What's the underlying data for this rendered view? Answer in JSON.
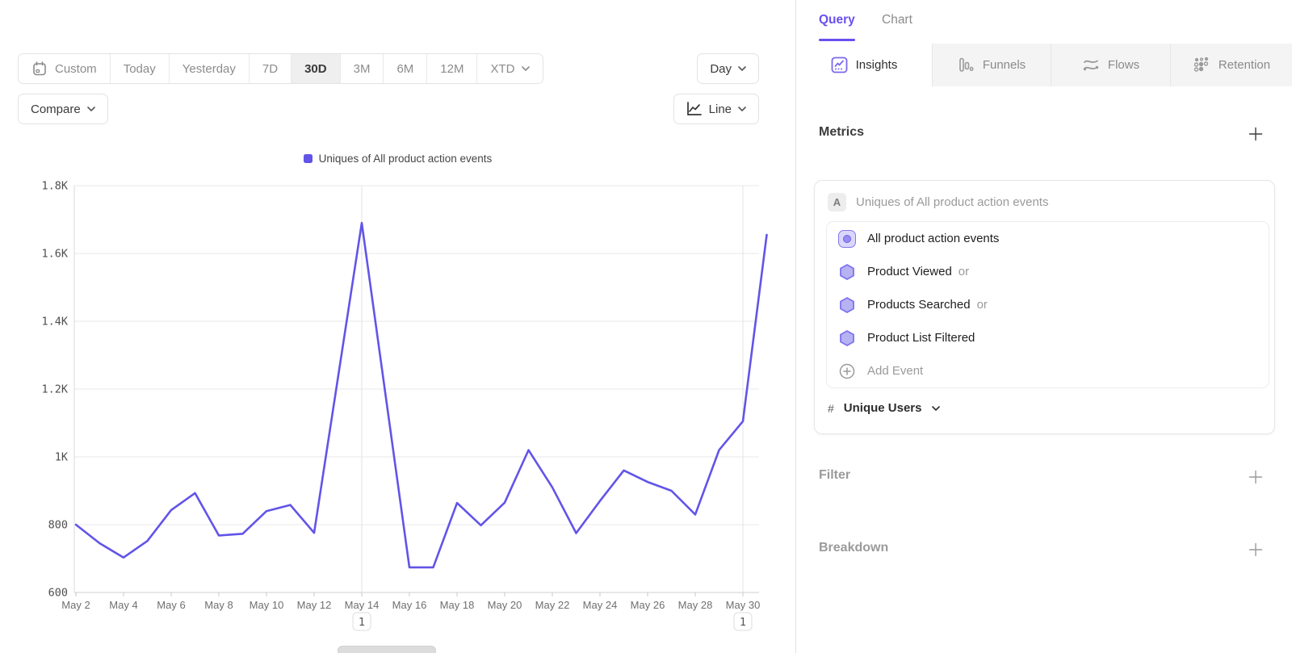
{
  "colors": {
    "accent_purple": "#6254e8",
    "query_purple": "#6a4ff0",
    "hex_fill": "#b7b2f4",
    "hex_stroke": "#7d72ee",
    "grid": "#e9e9e9",
    "axis": "#d2d2d2",
    "muted_text": "#8c8c8c"
  },
  "toolbar": {
    "date_ranges": [
      "Custom",
      "Today",
      "Yesterday",
      "7D",
      "30D",
      "3M",
      "6M",
      "12M",
      "XTD"
    ],
    "selected_range": "30D",
    "interval_label": "Day",
    "compare_label": "Compare",
    "chart_type_label": "Line"
  },
  "chart_data": {
    "type": "line",
    "legend_position": "top-center",
    "grid": true,
    "ylabel": "",
    "xlabel": "",
    "ylim": [
      600,
      1800
    ],
    "yticks": [
      {
        "value": 1800,
        "label": "1.8K"
      },
      {
        "value": 1600,
        "label": "1.6K"
      },
      {
        "value": 1400,
        "label": "1.4K"
      },
      {
        "value": 1200,
        "label": "1.2K"
      },
      {
        "value": 1000,
        "label": "1K"
      },
      {
        "value": 800,
        "label": "800"
      },
      {
        "value": 600,
        "label": "600"
      }
    ],
    "x": [
      "May 2",
      "May 3",
      "May 4",
      "May 5",
      "May 6",
      "May 7",
      "May 8",
      "May 9",
      "May 10",
      "May 11",
      "May 12",
      "May 13",
      "May 14",
      "May 15",
      "May 16",
      "May 17",
      "May 18",
      "May 19",
      "May 20",
      "May 21",
      "May 22",
      "May 23",
      "May 24",
      "May 25",
      "May 26",
      "May 27",
      "May 28",
      "May 29",
      "May 30",
      "May 31"
    ],
    "xtick_labels": [
      "May 2",
      "May 4",
      "May 6",
      "May 8",
      "May 10",
      "May 12",
      "May 14",
      "May 16",
      "May 18",
      "May 20",
      "May 22",
      "May 24",
      "May 26",
      "May 28",
      "May 30"
    ],
    "series": [
      {
        "name": "Uniques of All product action events",
        "color": "#6254e8",
        "values": [
          800,
          745,
          703,
          752,
          843,
          893,
          768,
          773,
          840,
          858,
          776,
          1233,
          1690,
          1182,
          674,
          674,
          864,
          798,
          865,
          1020,
          910,
          775,
          870,
          960,
          926,
          900,
          830,
          1020,
          1105,
          1655
        ]
      }
    ],
    "annotations": [
      {
        "label": "1",
        "date": "May 14"
      },
      {
        "label": "1",
        "date": "May 30"
      }
    ]
  },
  "panel": {
    "header_tabs": [
      {
        "label": "Query",
        "active": true
      },
      {
        "label": "Chart",
        "active": false
      }
    ],
    "report_tabs": [
      {
        "label": "Insights",
        "icon": "insights-icon",
        "active": true
      },
      {
        "label": "Funnels",
        "icon": "funnels-icon",
        "active": false
      },
      {
        "label": "Flows",
        "icon": "flows-icon",
        "active": false
      },
      {
        "label": "Retention",
        "icon": "retention-icon",
        "active": false
      }
    ],
    "metrics": {
      "title": "Metrics",
      "formula_badge": "A",
      "formula_label": "Uniques of All product action events",
      "events": [
        {
          "label": "All product action events",
          "icon": "all-events",
          "suffix": ""
        },
        {
          "label": "Product Viewed",
          "icon": "hexagon",
          "suffix": "or"
        },
        {
          "label": "Products Searched",
          "icon": "hexagon",
          "suffix": "or"
        },
        {
          "label": "Product List Filtered",
          "icon": "hexagon",
          "suffix": ""
        }
      ],
      "add_event_label": "Add Event",
      "measurement": {
        "symbol": "#",
        "label": "Unique Users"
      }
    },
    "sections": [
      {
        "label": "Filter"
      },
      {
        "label": "Breakdown"
      }
    ]
  }
}
